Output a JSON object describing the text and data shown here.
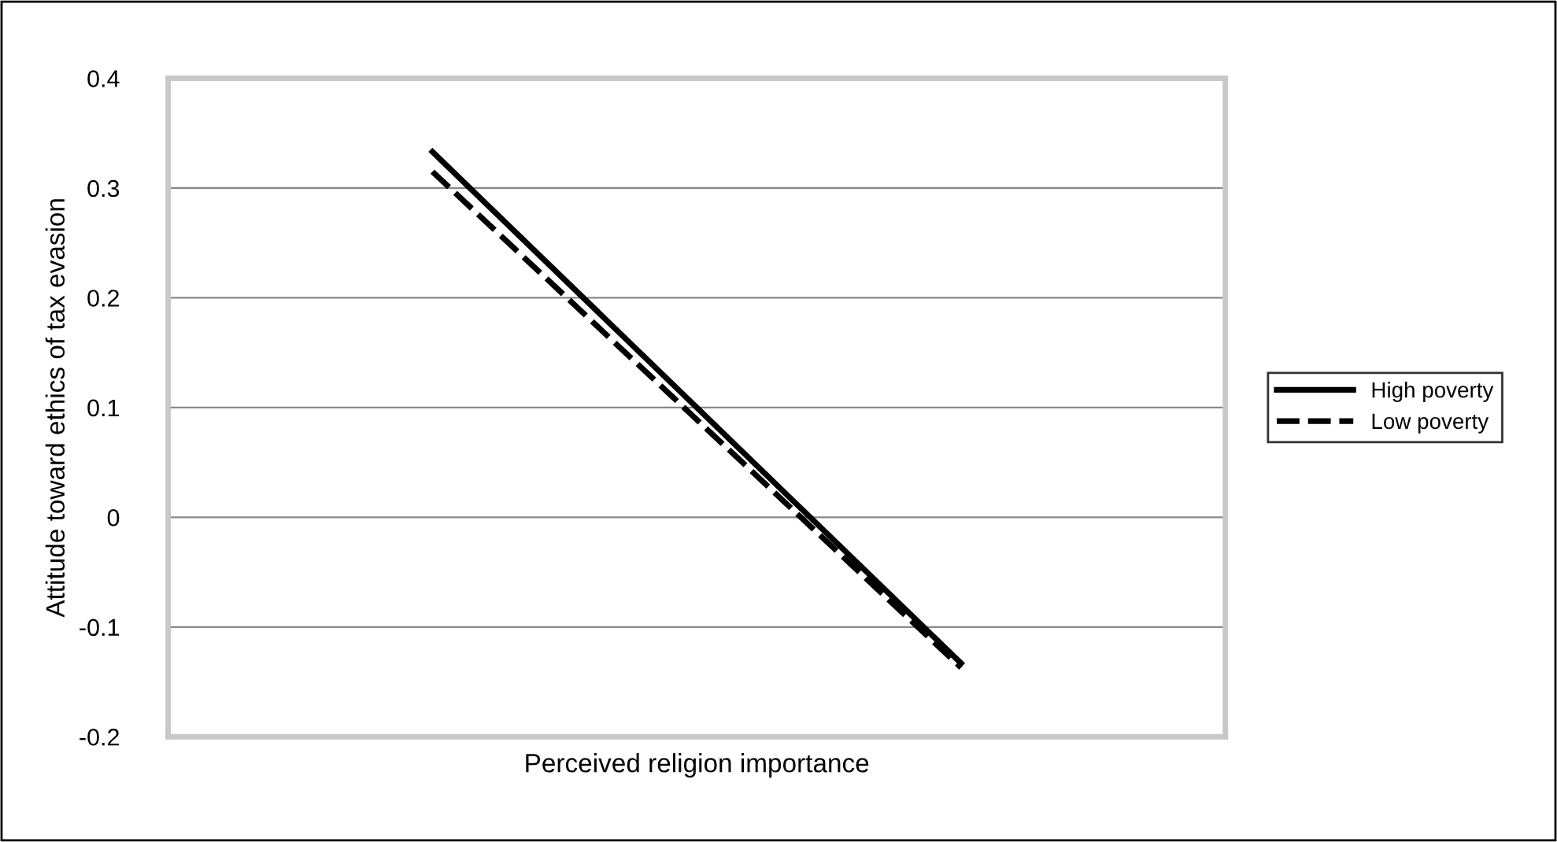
{
  "chart_data": {
    "type": "line",
    "xlabel": "Perceived religion importance",
    "ylabel": "Attitude toward ethics of tax evasion",
    "categories": [
      null,
      null
    ],
    "series": [
      {
        "name": "High poverty",
        "color": "#000000",
        "values": [
          0.333,
          -0.133
        ],
        "line_style": "solid"
      },
      {
        "name": "Low poverty",
        "color": "#000000",
        "values": [
          0.315,
          -0.137
        ],
        "line_style": "dashed"
      }
    ],
    "ylim": [
      -0.2,
      0.4
    ],
    "yticks": [
      {
        "value": -0.2,
        "label": "-0.2"
      },
      {
        "value": -0.1,
        "label": "-0.1"
      },
      0,
      0.1,
      0.2,
      0.3,
      0.4
    ],
    "grid": "y",
    "legend": "right",
    "marker": "none"
  }
}
